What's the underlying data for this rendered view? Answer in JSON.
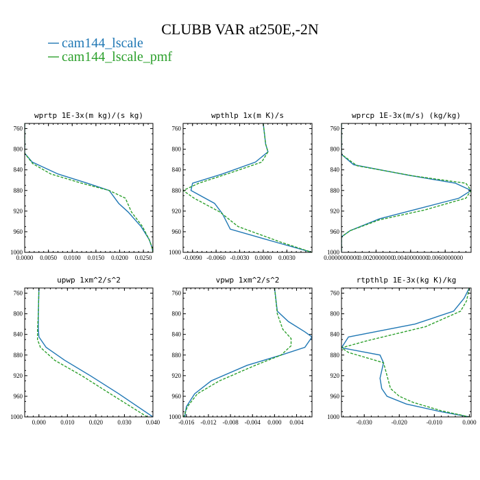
{
  "title": "CLUBB VAR at250E,-2N",
  "legend": [
    {
      "name": "cam144_lscale",
      "color": "#1f77b4"
    },
    {
      "name": "cam144_lscale_pmf",
      "color": "#2ca02c"
    }
  ],
  "chart_data": [
    {
      "type": "line",
      "title": "wprtp  1E-3x(m kg)/(s kg)",
      "xlim": [
        0.0,
        0.027
      ],
      "ylim": [
        1000,
        750
      ],
      "xticks": [
        0.0,
        0.005,
        0.01,
        0.015,
        0.02,
        0.025
      ],
      "xtick_labels": [
        "0.0000",
        "0.0050",
        "0.0100",
        "0.0150",
        "0.0200",
        "0.0250"
      ],
      "yticks": [
        760,
        800,
        840,
        880,
        920,
        960,
        1000
      ],
      "ytick_labels": [
        "760",
        "800",
        "840",
        "880",
        "920",
        "960",
        "1000"
      ],
      "series": [
        {
          "values": [
            [
              0.0,
              750
            ],
            [
              0.0,
              800
            ],
            [
              0.0,
              808
            ],
            [
              0.0016,
              825
            ],
            [
              0.007,
              848
            ],
            [
              0.0132,
              866
            ],
            [
              0.0178,
              880
            ],
            [
              0.0198,
              905
            ],
            [
              0.0218,
              922
            ],
            [
              0.0245,
              950
            ],
            [
              0.0262,
              975
            ],
            [
              0.0268,
              990
            ],
            [
              0.027,
              1000
            ]
          ]
        },
        {
          "values": [
            [
              0.0,
              750
            ],
            [
              0.0,
              800
            ],
            [
              0.0,
              808
            ],
            [
              0.0017,
              828
            ],
            [
              0.0055,
              848
            ],
            [
              0.012,
              866
            ],
            [
              0.0178,
              880
            ],
            [
              0.0212,
              895
            ],
            [
              0.0225,
              922
            ],
            [
              0.0248,
              950
            ],
            [
              0.0262,
              975
            ],
            [
              0.0268,
              990
            ],
            [
              0.027,
              1000
            ]
          ]
        }
      ]
    },
    {
      "type": "line",
      "title": "wpthlp  1x(m K)/s",
      "xlim": [
        -0.0102,
        0.0062
      ],
      "ylim": [
        1000,
        750
      ],
      "xticks": [
        -0.009,
        -0.006,
        -0.003,
        0.0,
        0.003
      ],
      "xtick_labels": [
        "-0.0090",
        "-0.0060",
        "-0.0030",
        "0.0000",
        "0.0030"
      ],
      "yticks": [
        760,
        800,
        840,
        880,
        920,
        960,
        1000
      ],
      "ytick_labels": [
        "760",
        "800",
        "840",
        "880",
        "920",
        "960",
        "1000"
      ],
      "series": [
        {
          "values": [
            [
              0.0,
              750
            ],
            [
              0.0003,
              790
            ],
            [
              0.0006,
              805
            ],
            [
              -0.001,
              825
            ],
            [
              -0.0052,
              848
            ],
            [
              -0.009,
              866
            ],
            [
              -0.0092,
              880
            ],
            [
              -0.0062,
              905
            ],
            [
              -0.0052,
              925
            ],
            [
              -0.0042,
              955
            ],
            [
              0.002,
              982
            ],
            [
              0.0062,
              1000
            ]
          ]
        },
        {
          "values": [
            [
              0.0,
              750
            ],
            [
              0.0003,
              790
            ],
            [
              0.0006,
              805
            ],
            [
              -0.0002,
              825
            ],
            [
              -0.004,
              845
            ],
            [
              -0.0082,
              866
            ],
            [
              -0.0102,
              880
            ],
            [
              -0.0088,
              895
            ],
            [
              -0.0055,
              922
            ],
            [
              -0.0032,
              950
            ],
            [
              0.0022,
              980
            ],
            [
              0.0062,
              1000
            ]
          ]
        }
      ]
    },
    {
      "type": "line",
      "title": "wprcp  1E-3x(m/s) (kg/kg)",
      "xlim": [
        0.0,
        0.0075
      ],
      "ylim": [
        1000,
        750
      ],
      "xticks": [
        0.0,
        0.002,
        0.004,
        0.006
      ],
      "xtick_labels": [
        "0.0000000000",
        "0.0020000000",
        "0.0040000000",
        "0.0060000000"
      ],
      "yticks": [
        760,
        800,
        840,
        880,
        920,
        960,
        1000
      ],
      "ytick_labels": [
        "760",
        "800",
        "840",
        "880",
        "920",
        "960",
        "1000"
      ],
      "series": [
        {
          "values": [
            [
              0.0,
              750
            ],
            [
              0.0,
              800
            ],
            [
              0.0,
              810
            ],
            [
              0.0007,
              830
            ],
            [
              0.0038,
              850
            ],
            [
              0.0066,
              866
            ],
            [
              0.0075,
              880
            ],
            [
              0.0068,
              895
            ],
            [
              0.0045,
              915
            ],
            [
              0.0022,
              935
            ],
            [
              0.0005,
              958
            ],
            [
              0.0,
              970
            ],
            [
              0.0,
              1000
            ]
          ]
        },
        {
          "values": [
            [
              0.0,
              750
            ],
            [
              0.0,
              800
            ],
            [
              0.0,
              810
            ],
            [
              0.0009,
              832
            ],
            [
              0.0042,
              852
            ],
            [
              0.0072,
              866
            ],
            [
              0.0075,
              880
            ],
            [
              0.0072,
              895
            ],
            [
              0.0048,
              918
            ],
            [
              0.0022,
              937
            ],
            [
              0.0005,
              958
            ],
            [
              0.0,
              970
            ],
            [
              0.0,
              1000
            ]
          ]
        }
      ]
    },
    {
      "type": "line",
      "title": "upwp  1xm^2/s^2",
      "xlim": [
        -0.005,
        0.04
      ],
      "ylim": [
        1000,
        750
      ],
      "xticks": [
        0.0,
        0.01,
        0.02,
        0.03,
        0.04
      ],
      "xtick_labels": [
        "0.000",
        "0.010",
        "0.020",
        "0.030",
        "0.040"
      ],
      "yticks": [
        760,
        800,
        840,
        880,
        920,
        960,
        1000
      ],
      "ytick_labels": [
        "760",
        "800",
        "840",
        "880",
        "920",
        "960",
        "1000"
      ],
      "series": [
        {
          "values": [
            [
              0.0,
              750
            ],
            [
              -0.0002,
              800
            ],
            [
              -0.0002,
              830
            ],
            [
              0.0,
              845
            ],
            [
              0.0025,
              865
            ],
            [
              0.009,
              890
            ],
            [
              0.018,
              920
            ],
            [
              0.028,
              955
            ],
            [
              0.04,
              1000
            ]
          ]
        },
        {
          "values": [
            [
              0.0,
              750
            ],
            [
              -0.0002,
              800
            ],
            [
              -0.0005,
              830
            ],
            [
              -0.0005,
              850
            ],
            [
              0.0005,
              865
            ],
            [
              0.0055,
              890
            ],
            [
              0.015,
              920
            ],
            [
              0.025,
              955
            ],
            [
              0.038,
              1000
            ]
          ]
        }
      ]
    },
    {
      "type": "line",
      "title": "vpwp  1xm^2/s^2",
      "xlim": [
        -0.0166,
        0.0068
      ],
      "ylim": [
        1000,
        750
      ],
      "xticks": [
        -0.016,
        -0.012,
        -0.008,
        -0.004,
        0.0,
        0.004
      ],
      "xtick_labels": [
        "-0.016",
        "-0.012",
        "-0.008",
        "-0.004",
        "0.000",
        "0.004"
      ],
      "yticks": [
        760,
        800,
        840,
        880,
        920,
        960,
        1000
      ],
      "ytick_labels": [
        "760",
        "800",
        "840",
        "880",
        "920",
        "960",
        "1000"
      ],
      "series": [
        {
          "values": [
            [
              0.0,
              750
            ],
            [
              0.0005,
              795
            ],
            [
              0.0025,
              815
            ],
            [
              0.0055,
              835
            ],
            [
              0.0068,
              845
            ],
            [
              0.0055,
              865
            ],
            [
              0.0012,
              880
            ],
            [
              -0.005,
              900
            ],
            [
              -0.0115,
              930
            ],
            [
              -0.0145,
              955
            ],
            [
              -0.016,
              980
            ],
            [
              -0.0163,
              1000
            ]
          ]
        },
        {
          "values": [
            [
              0.0,
              750
            ],
            [
              0.0005,
              800
            ],
            [
              0.0015,
              830
            ],
            [
              0.003,
              848
            ],
            [
              0.003,
              862
            ],
            [
              0.0012,
              880
            ],
            [
              -0.0035,
              900
            ],
            [
              -0.01,
              930
            ],
            [
              -0.014,
              955
            ],
            [
              -0.0158,
              980
            ],
            [
              -0.0165,
              1000
            ]
          ]
        }
      ]
    },
    {
      "type": "line",
      "title": "rtpthlp  1E-3x(kg K)/kg",
      "xlim": [
        -0.0365,
        0.0005
      ],
      "ylim": [
        1000,
        750
      ],
      "xticks": [
        -0.03,
        -0.02,
        -0.01,
        0.0
      ],
      "xtick_labels": [
        "-0.030",
        "-0.020",
        "-0.010",
        "0.000"
      ],
      "yticks": [
        760,
        800,
        840,
        880,
        920,
        960,
        1000
      ],
      "ytick_labels": [
        "760",
        "800",
        "840",
        "880",
        "920",
        "960",
        "1000"
      ],
      "series": [
        {
          "values": [
            [
              0.0,
              750
            ],
            [
              -0.0015,
              770
            ],
            [
              -0.0045,
              795
            ],
            [
              -0.0155,
              820
            ],
            [
              -0.0345,
              845
            ],
            [
              -0.0365,
              866
            ],
            [
              -0.0255,
              880
            ],
            [
              -0.0245,
              895
            ],
            [
              -0.0255,
              925
            ],
            [
              -0.025,
              945
            ],
            [
              -0.0235,
              960
            ],
            [
              -0.018,
              975
            ],
            [
              -0.008,
              990
            ],
            [
              0.0,
              1000
            ]
          ]
        },
        {
          "values": [
            [
              0.0,
              750
            ],
            [
              -0.0008,
              775
            ],
            [
              -0.0025,
              795
            ],
            [
              -0.0125,
              825
            ],
            [
              -0.029,
              852
            ],
            [
              -0.0365,
              866
            ],
            [
              -0.0345,
              875
            ],
            [
              -0.0245,
              895
            ],
            [
              -0.0235,
              920
            ],
            [
              -0.0225,
              945
            ],
            [
              -0.02,
              960
            ],
            [
              -0.016,
              972
            ],
            [
              -0.008,
              988
            ],
            [
              0.0,
              1000
            ]
          ]
        }
      ]
    }
  ]
}
